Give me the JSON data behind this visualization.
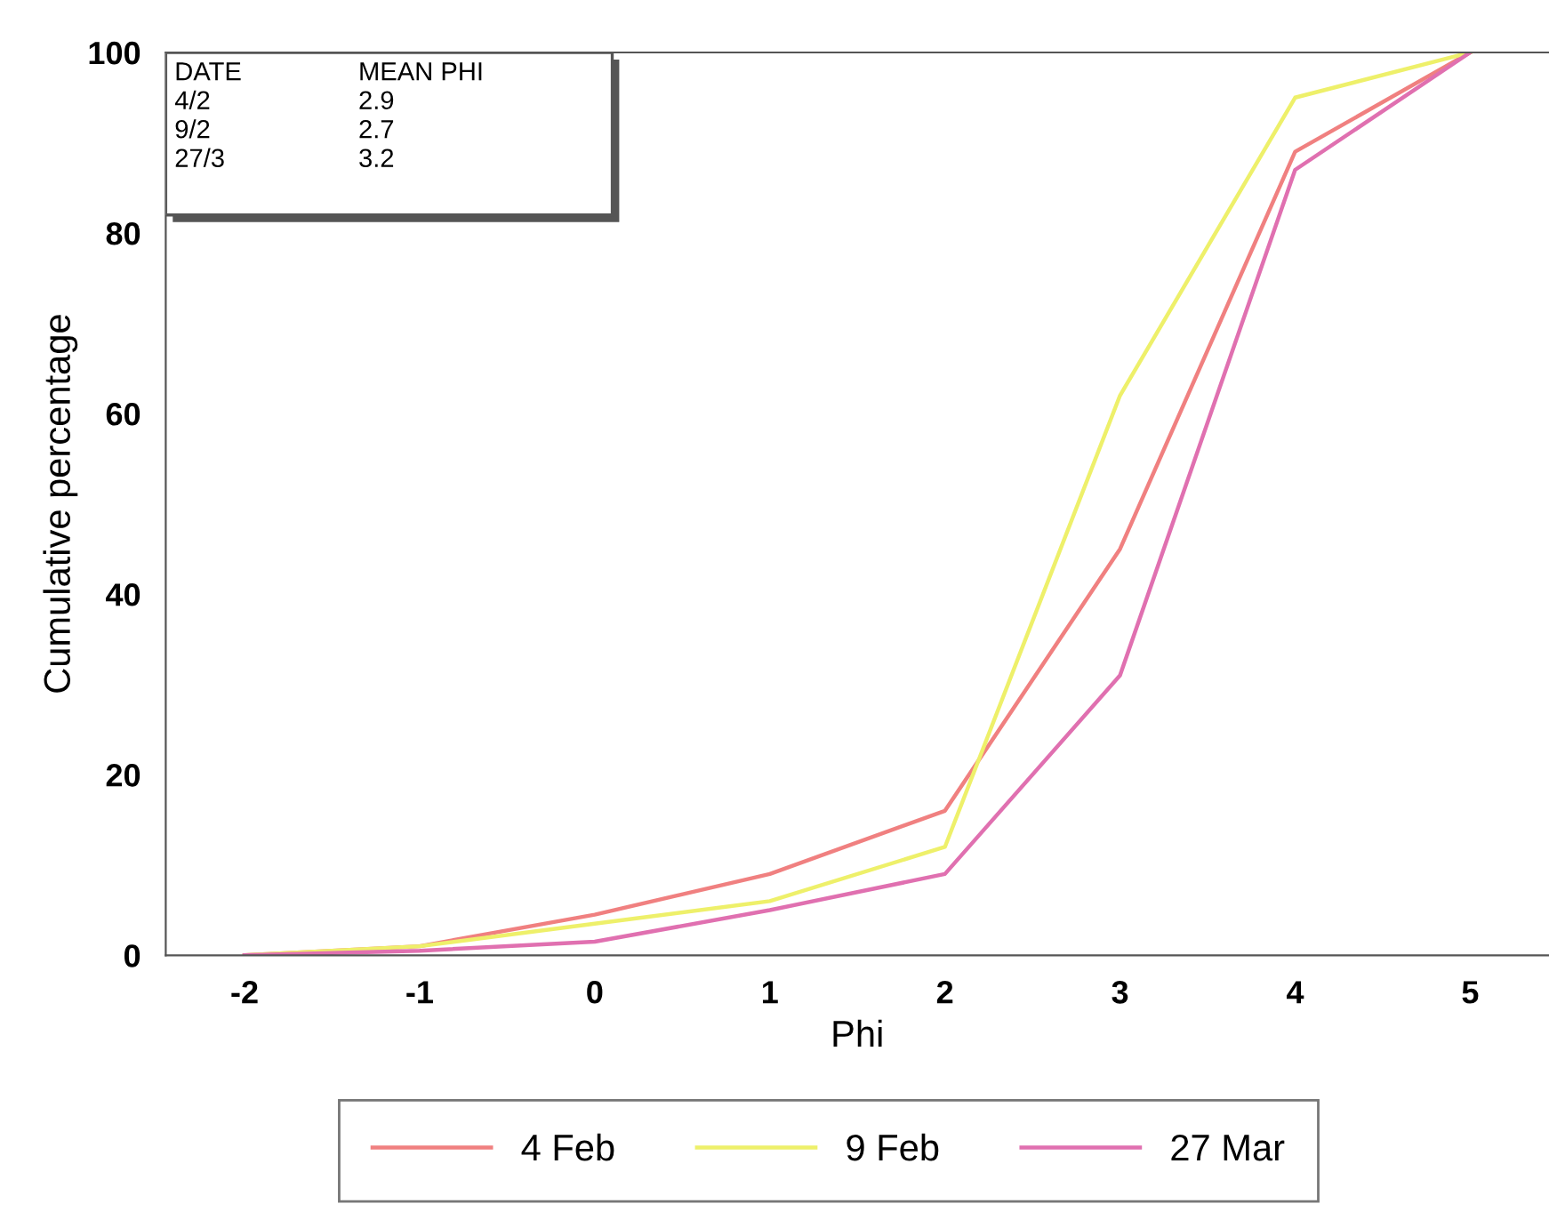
{
  "chart_data": {
    "type": "line",
    "xlabel": "Phi",
    "ylabel": "Cumulative percentage",
    "x": [
      -2,
      -1,
      0,
      1,
      2,
      3,
      4,
      5
    ],
    "series": [
      {
        "name": "4 Feb",
        "color": "#f08080",
        "values": [
          0,
          1,
          4.5,
          9,
          16,
          45,
          89,
          100
        ]
      },
      {
        "name": "9 Feb",
        "color": "#eef06a",
        "values": [
          0,
          1,
          3.5,
          6,
          12,
          62,
          95,
          100
        ]
      },
      {
        "name": "27 Mar",
        "color": "#e070b0",
        "values": [
          0,
          0.5,
          1.5,
          5,
          9,
          31,
          87,
          100
        ]
      }
    ],
    "xlim": [
      -2.45,
      5.45
    ],
    "ylim": [
      0,
      100
    ],
    "xticks": [
      -2,
      -1,
      0,
      1,
      2,
      3,
      4,
      5
    ],
    "yticks": [
      0,
      20,
      40,
      60,
      80,
      100
    ],
    "grid": false,
    "legend": "bottom",
    "marker": "none",
    "line_style": "solid",
    "annotations": [
      "DATE",
      "MEAN PHI",
      "4/2",
      "2.9",
      "9/2",
      "2.7",
      "27/3",
      "3.2"
    ]
  }
}
